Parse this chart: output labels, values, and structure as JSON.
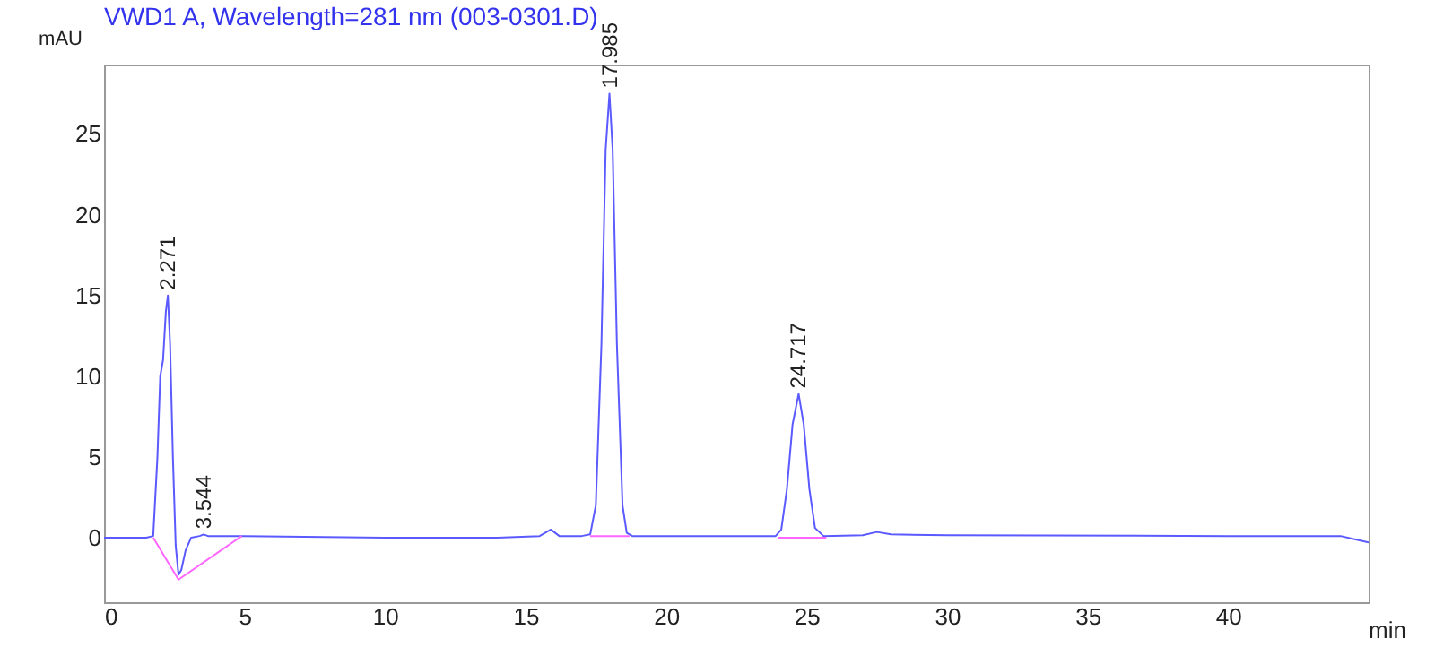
{
  "chart_data": {
    "type": "line",
    "title": "VWD1 A, Wavelength=281 nm (003-0301.D)",
    "xlabel": "min",
    "ylabel": "mAU",
    "xlim": [
      0,
      45
    ],
    "xticks": [
      0,
      5,
      10,
      15,
      20,
      25,
      30,
      35,
      40
    ],
    "ylim": [
      -4,
      29.3
    ],
    "yticks": [
      0,
      5,
      10,
      15,
      20,
      25
    ],
    "grid": false,
    "marker": "none",
    "line_style": "solid",
    "series": [
      {
        "color": "#5a5aff",
        "x": [
          0,
          1.5,
          1.75,
          1.9,
          2.0,
          2.1,
          2.2,
          2.271,
          2.35,
          2.45,
          2.55,
          2.65,
          2.75,
          2.9,
          3.1,
          3.4,
          3.544,
          3.7,
          5,
          10,
          14,
          15.5,
          15.9,
          16.2,
          17,
          17.3,
          17.5,
          17.7,
          17.85,
          17.985,
          18.1,
          18.25,
          18.45,
          18.6,
          18.8,
          23.9,
          24.1,
          24.3,
          24.5,
          24.717,
          24.9,
          25.1,
          25.3,
          25.6,
          27,
          27.5,
          28,
          30,
          40,
          44,
          44.5,
          45
        ],
        "values": [
          0,
          0,
          0.1,
          5,
          10,
          11,
          14,
          15,
          12,
          5,
          -0.5,
          -2.3,
          -2.0,
          -0.8,
          0,
          0.1,
          0.2,
          0.1,
          0.1,
          0,
          0,
          0.1,
          0.5,
          0.1,
          0.1,
          0.2,
          2,
          12,
          24,
          27.5,
          24,
          12,
          2,
          0.3,
          0.1,
          0.1,
          0.5,
          3,
          7,
          8.9,
          7,
          3,
          0.6,
          0.1,
          0.15,
          0.35,
          0.2,
          0.15,
          0.1,
          0.1,
          -0.1,
          -0.3
        ]
      },
      {
        "color": "#ff66ff",
        "x": [
          1.75,
          2.65,
          4.9
        ],
        "values": [
          0,
          -2.6,
          0.1
        ]
      },
      {
        "color": "#ff66ff",
        "x": [
          17.3,
          18.7
        ],
        "values": [
          0.1,
          0.1
        ]
      },
      {
        "color": "#ff66ff",
        "x": [
          24,
          25.7
        ],
        "values": [
          0,
          0
        ]
      }
    ],
    "annotations": [
      {
        "text": "2.271",
        "x": 2.271,
        "y": 15
      },
      {
        "text": "3.544",
        "x": 3.544,
        "y": 0.2
      },
      {
        "text": "17.985",
        "x": 17.985,
        "y": 27.5
      },
      {
        "text": "24.717",
        "x": 24.717,
        "y": 8.9
      }
    ]
  }
}
